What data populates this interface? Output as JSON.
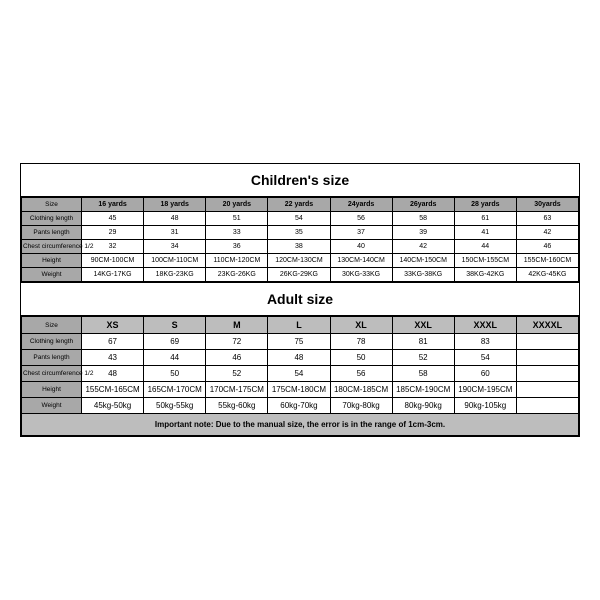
{
  "children": {
    "title": "Children's size",
    "row_labels": [
      "Size",
      "Clothing length",
      "Pants length",
      "Chest circumference 1/2",
      "Height",
      "Weight"
    ],
    "headers": [
      "16 yards",
      "18 yards",
      "20 yards",
      "22 yards",
      "24yards",
      "26yards",
      "28 yards",
      "30yards"
    ],
    "rows": [
      [
        "45",
        "48",
        "51",
        "54",
        "56",
        "58",
        "61",
        "63"
      ],
      [
        "29",
        "31",
        "33",
        "35",
        "37",
        "39",
        "41",
        "42"
      ],
      [
        "32",
        "34",
        "36",
        "38",
        "40",
        "42",
        "44",
        "46"
      ],
      [
        "90CM-100CM",
        "100CM-110CM",
        "110CM-120CM",
        "120CM-130CM",
        "130CM-140CM",
        "140CM-150CM",
        "150CM-155CM",
        "155CM-160CM"
      ],
      [
        "14KG-17KG",
        "18KG-23KG",
        "23KG-26KG",
        "26KG-29KG",
        "30KG-33KG",
        "33KG-38KG",
        "38KG-42KG",
        "42KG-45KG"
      ]
    ]
  },
  "adult": {
    "title": "Adult size",
    "row_labels": [
      "Size",
      "Clothing length",
      "Pants length",
      "Chest circumference 1/2",
      "Height",
      "Weight"
    ],
    "headers": [
      "XS",
      "S",
      "M",
      "L",
      "XL",
      "XXL",
      "XXXL",
      "XXXXL"
    ],
    "rows": [
      [
        "67",
        "69",
        "72",
        "75",
        "78",
        "81",
        "83",
        ""
      ],
      [
        "43",
        "44",
        "46",
        "48",
        "50",
        "52",
        "54",
        ""
      ],
      [
        "48",
        "50",
        "52",
        "54",
        "56",
        "58",
        "60",
        ""
      ],
      [
        "155CM-165CM",
        "165CM-170CM",
        "170CM-175CM",
        "175CM-180CM",
        "180CM-185CM",
        "185CM-190CM",
        "190CM-195CM",
        ""
      ],
      [
        "45kg-50kg",
        "50kg-55kg",
        "55kg-60kg",
        "60kg-70kg",
        "70kg-80kg",
        "80kg-90kg",
        "90kg-105kg",
        ""
      ]
    ]
  },
  "note": "Important note: Due to the manual size, the error is in the range of 1cm-3cm.",
  "colors": {
    "header_bg_children": "#a8a8a8",
    "header_bg_adult": "#bdbdbd",
    "note_bg": "#bdbdbd",
    "border": "#000000",
    "background": "#ffffff"
  }
}
